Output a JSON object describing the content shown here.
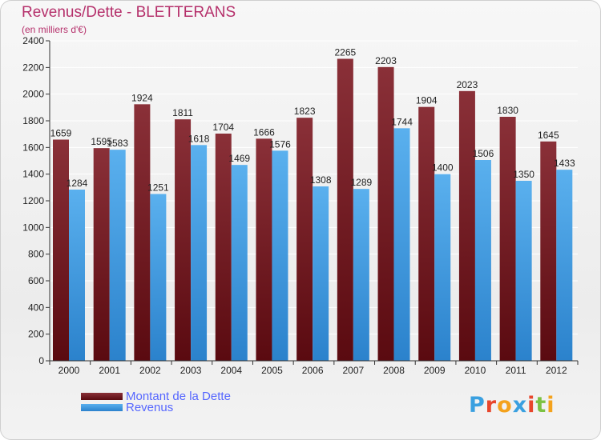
{
  "title": "Revenus/Dette - BLETTERANS",
  "subtitle": "(en milliers d'€)",
  "logo": {
    "text": "Proxiti",
    "colors": [
      "#3aa0e0",
      "#e8462c",
      "#f4a21c",
      "#3aa0e0",
      "#e8462c",
      "#7cc242",
      "#f4a21c"
    ]
  },
  "colors": {
    "dette": "#7a1c22",
    "revenus": "#3f9be2",
    "axis": "#333333",
    "grid": "#ffffff"
  },
  "chart_data": {
    "type": "bar",
    "categories": [
      "2000",
      "2001",
      "2002",
      "2003",
      "2004",
      "2005",
      "2006",
      "2007",
      "2008",
      "2009",
      "2010",
      "2011",
      "2012"
    ],
    "series": [
      {
        "name": "Montant de la Dette",
        "values": [
          1659,
          1595,
          1924,
          1811,
          1704,
          1666,
          1823,
          2265,
          2203,
          1904,
          2023,
          1830,
          1645
        ]
      },
      {
        "name": "Revenus",
        "values": [
          1284,
          1583,
          1251,
          1618,
          1469,
          1576,
          1308,
          1289,
          1744,
          1400,
          1506,
          1350,
          1433
        ]
      }
    ],
    "yticks": [
      0,
      200,
      400,
      600,
      800,
      1000,
      1200,
      1400,
      1600,
      1800,
      2000,
      2200,
      2400
    ],
    "ylim": [
      0,
      2400
    ],
    "grid": true,
    "legend_position": "bottom-left"
  }
}
